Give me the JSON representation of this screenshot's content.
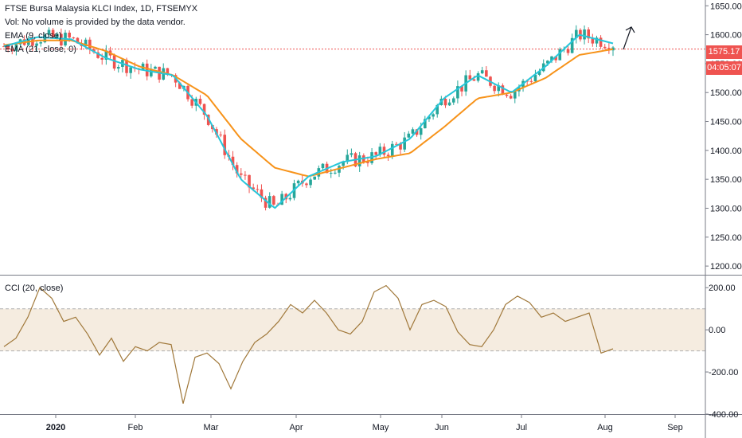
{
  "header": {
    "title": "FTSE Bursa Malaysia KLCI Index, 1D, FTSEMYX",
    "vol_note": "Vol: No volume is provided by the data vendor.",
    "ema_fast_label": "EMA (9, close)",
    "ema_slow_label": "EMA (21, close, 0)"
  },
  "price_tag": {
    "value": "1575.17",
    "countdown": "04:05:07"
  },
  "cci_label": "CCI (20, close)",
  "colors": {
    "up": "#26a69a",
    "down": "#ef5350",
    "ema_fast": "#26c6da",
    "ema_slow": "#f7931a",
    "cci": "#a0783a",
    "cci_band": "#f5ece0",
    "price_tag": "#ef5350"
  },
  "chart_data": [
    {
      "type": "candlestick",
      "title": "FTSE Bursa Malaysia KLCI Index, 1D, FTSEMYX",
      "y_ticks": [
        "1650.00",
        "1600.00",
        "1550.00",
        "1500.00",
        "1450.00",
        "1400.00",
        "1350.00",
        "1300.00",
        "1250.00",
        "1200.00"
      ],
      "ylim": [
        1185,
        1660
      ],
      "x_ticks": [
        "2020",
        "Feb",
        "Mar",
        "Apr",
        "May",
        "Jun",
        "Jul",
        "Aug",
        "Sep"
      ],
      "last_price": 1575.17,
      "series": [
        {
          "name": "EMA (9, close)",
          "x": [
            "Dec 10",
            "Jan 2",
            "Jan 20",
            "Feb 3",
            "Feb 17",
            "Mar 2",
            "Mar 12",
            "Mar 19",
            "Mar 26",
            "Apr 9",
            "Apr 23",
            "May 11",
            "May 25",
            "Jun 8",
            "Jun 22",
            "Jul 3",
            "Jul 13",
            "Jul 24",
            "Aug 4"
          ],
          "values": [
            1580,
            1596,
            1592,
            1560,
            1540,
            1530,
            1460,
            1350,
            1300,
            1355,
            1380,
            1390,
            1420,
            1490,
            1530,
            1500,
            1545,
            1600,
            1585
          ]
        },
        {
          "name": "EMA (21, close, 0)",
          "x": [
            "Dec 10",
            "Jan 2",
            "Jan 20",
            "Feb 3",
            "Feb 17",
            "Mar 2",
            "Mar 12",
            "Mar 19",
            "Mar 26",
            "Apr 9",
            "Apr 23",
            "May 11",
            "May 25",
            "Jun 8",
            "Jun 22",
            "Jul 3",
            "Jul 13",
            "Jul 24",
            "Aug 4"
          ],
          "values": [
            1582,
            1590,
            1590,
            1572,
            1545,
            1530,
            1495,
            1420,
            1370,
            1355,
            1370,
            1385,
            1395,
            1440,
            1490,
            1500,
            1525,
            1565,
            1575
          ]
        }
      ]
    },
    {
      "type": "line",
      "title": "CCI (20, close)",
      "y_ticks": [
        "200.00",
        "0.00",
        "-200.00",
        "-400.00"
      ],
      "ylim": [
        -400,
        250
      ],
      "band": [
        -100,
        100
      ],
      "series": [
        {
          "name": "CCI (20, close)",
          "values": [
            -80,
            -40,
            60,
            200,
            150,
            40,
            60,
            -20,
            -120,
            -40,
            -150,
            -80,
            -100,
            -60,
            -70,
            -350,
            -130,
            -110,
            -160,
            -280,
            -150,
            -60,
            -20,
            40,
            120,
            80,
            140,
            80,
            0,
            -20,
            40,
            180,
            210,
            150,
            0,
            120,
            140,
            110,
            -10,
            -70,
            -80,
            0,
            120,
            160,
            130,
            60,
            80,
            40,
            60,
            80,
            -110,
            -90
          ]
        }
      ]
    }
  ]
}
